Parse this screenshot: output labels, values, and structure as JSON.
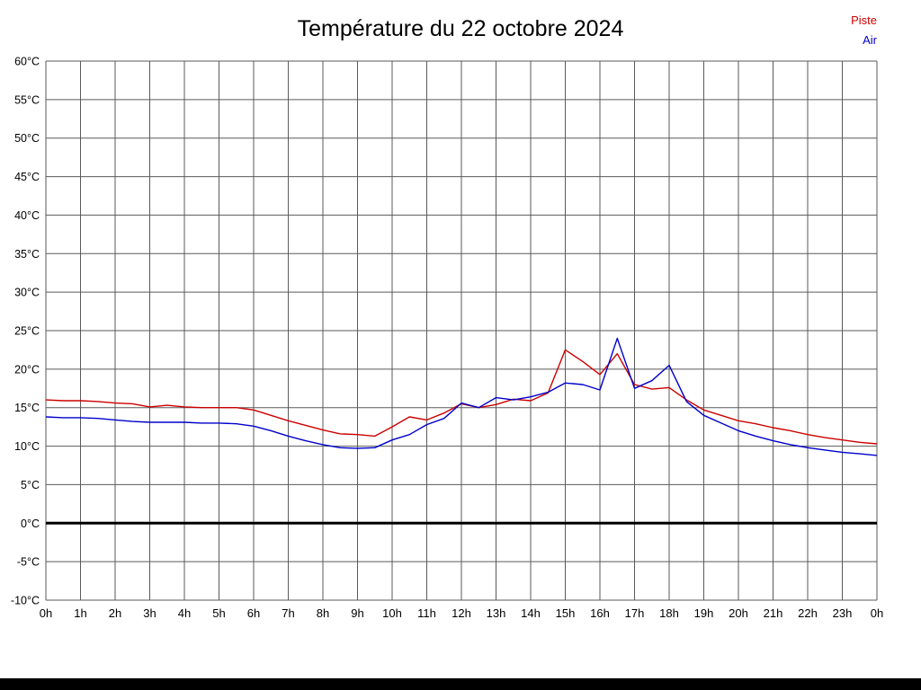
{
  "chart_data": {
    "type": "line",
    "title": "Température du 22 octobre 2024",
    "xlabel": "",
    "ylabel": "",
    "xlim": [
      0,
      24
    ],
    "ylim": [
      -10,
      60
    ],
    "grid": true,
    "grid_color": "#5a5a5a",
    "legend_position": "top-right",
    "x_ticks": [
      0,
      1,
      2,
      3,
      4,
      5,
      6,
      7,
      8,
      9,
      10,
      11,
      12,
      13,
      14,
      15,
      16,
      17,
      18,
      19,
      20,
      21,
      22,
      23,
      24
    ],
    "x_tick_labels": [
      "0h",
      "1h",
      "2h",
      "3h",
      "4h",
      "5h",
      "6h",
      "7h",
      "8h",
      "9h",
      "10h",
      "11h",
      "12h",
      "13h",
      "14h",
      "15h",
      "16h",
      "17h",
      "18h",
      "19h",
      "20h",
      "21h",
      "22h",
      "23h",
      "0h"
    ],
    "y_ticks": [
      60,
      55,
      50,
      45,
      40,
      35,
      30,
      25,
      20,
      15,
      10,
      5,
      0,
      -5,
      -10
    ],
    "y_tick_labels": [
      "60°C",
      "55°C",
      "50°C",
      "45°C",
      "40°C",
      "35°C",
      "30°C",
      "25°C",
      "20°C",
      "15°C",
      "10°C",
      "5°C",
      "0°C",
      "-5°C",
      "-10°C"
    ],
    "zero_line": {
      "value": 0,
      "color": "#000000",
      "width": 3
    },
    "x": [
      0,
      0.5,
      1,
      1.5,
      2,
      2.5,
      3,
      3.5,
      4,
      4.5,
      5,
      5.5,
      6,
      6.5,
      7,
      7.5,
      8,
      8.5,
      9,
      9.5,
      10,
      10.5,
      11,
      11.5,
      12,
      12.5,
      13,
      13.5,
      14,
      14.5,
      15,
      15.5,
      16,
      16.5,
      17,
      17.5,
      18,
      18.5,
      19,
      19.5,
      20,
      20.5,
      21,
      21.5,
      22,
      22.5,
      23,
      23.5,
      24
    ],
    "series": [
      {
        "name": "Piste",
        "color": "#cc0000",
        "values": [
          16.0,
          15.9,
          15.9,
          15.8,
          15.6,
          15.5,
          15.1,
          15.3,
          15.1,
          15.0,
          15.0,
          15.0,
          14.7,
          14.0,
          13.3,
          12.7,
          12.1,
          11.6,
          11.5,
          11.3,
          12.5,
          13.8,
          13.4,
          14.3,
          15.5,
          15.0,
          15.4,
          16.1,
          15.9,
          16.9,
          22.5,
          21.0,
          19.3,
          22.0,
          18.0,
          17.4,
          17.6,
          16.0,
          14.7,
          14.0,
          13.3,
          12.9,
          12.4,
          12.0,
          11.5,
          11.1,
          10.8,
          10.5,
          10.3
        ]
      },
      {
        "name": "Air",
        "color": "#0000cc",
        "values": [
          13.8,
          13.7,
          13.7,
          13.6,
          13.4,
          13.2,
          13.1,
          13.1,
          13.1,
          13.0,
          13.0,
          12.9,
          12.6,
          12.0,
          11.3,
          10.7,
          10.2,
          9.8,
          9.7,
          9.8,
          10.8,
          11.5,
          12.8,
          13.6,
          15.6,
          15.0,
          16.3,
          16.0,
          16.4,
          17.0,
          18.2,
          18.0,
          17.3,
          24.0,
          17.5,
          18.5,
          20.5,
          15.8,
          14.0,
          13.0,
          12.0,
          11.3,
          10.7,
          10.2,
          9.8,
          9.5,
          9.2,
          9.0,
          8.8
        ]
      }
    ]
  }
}
